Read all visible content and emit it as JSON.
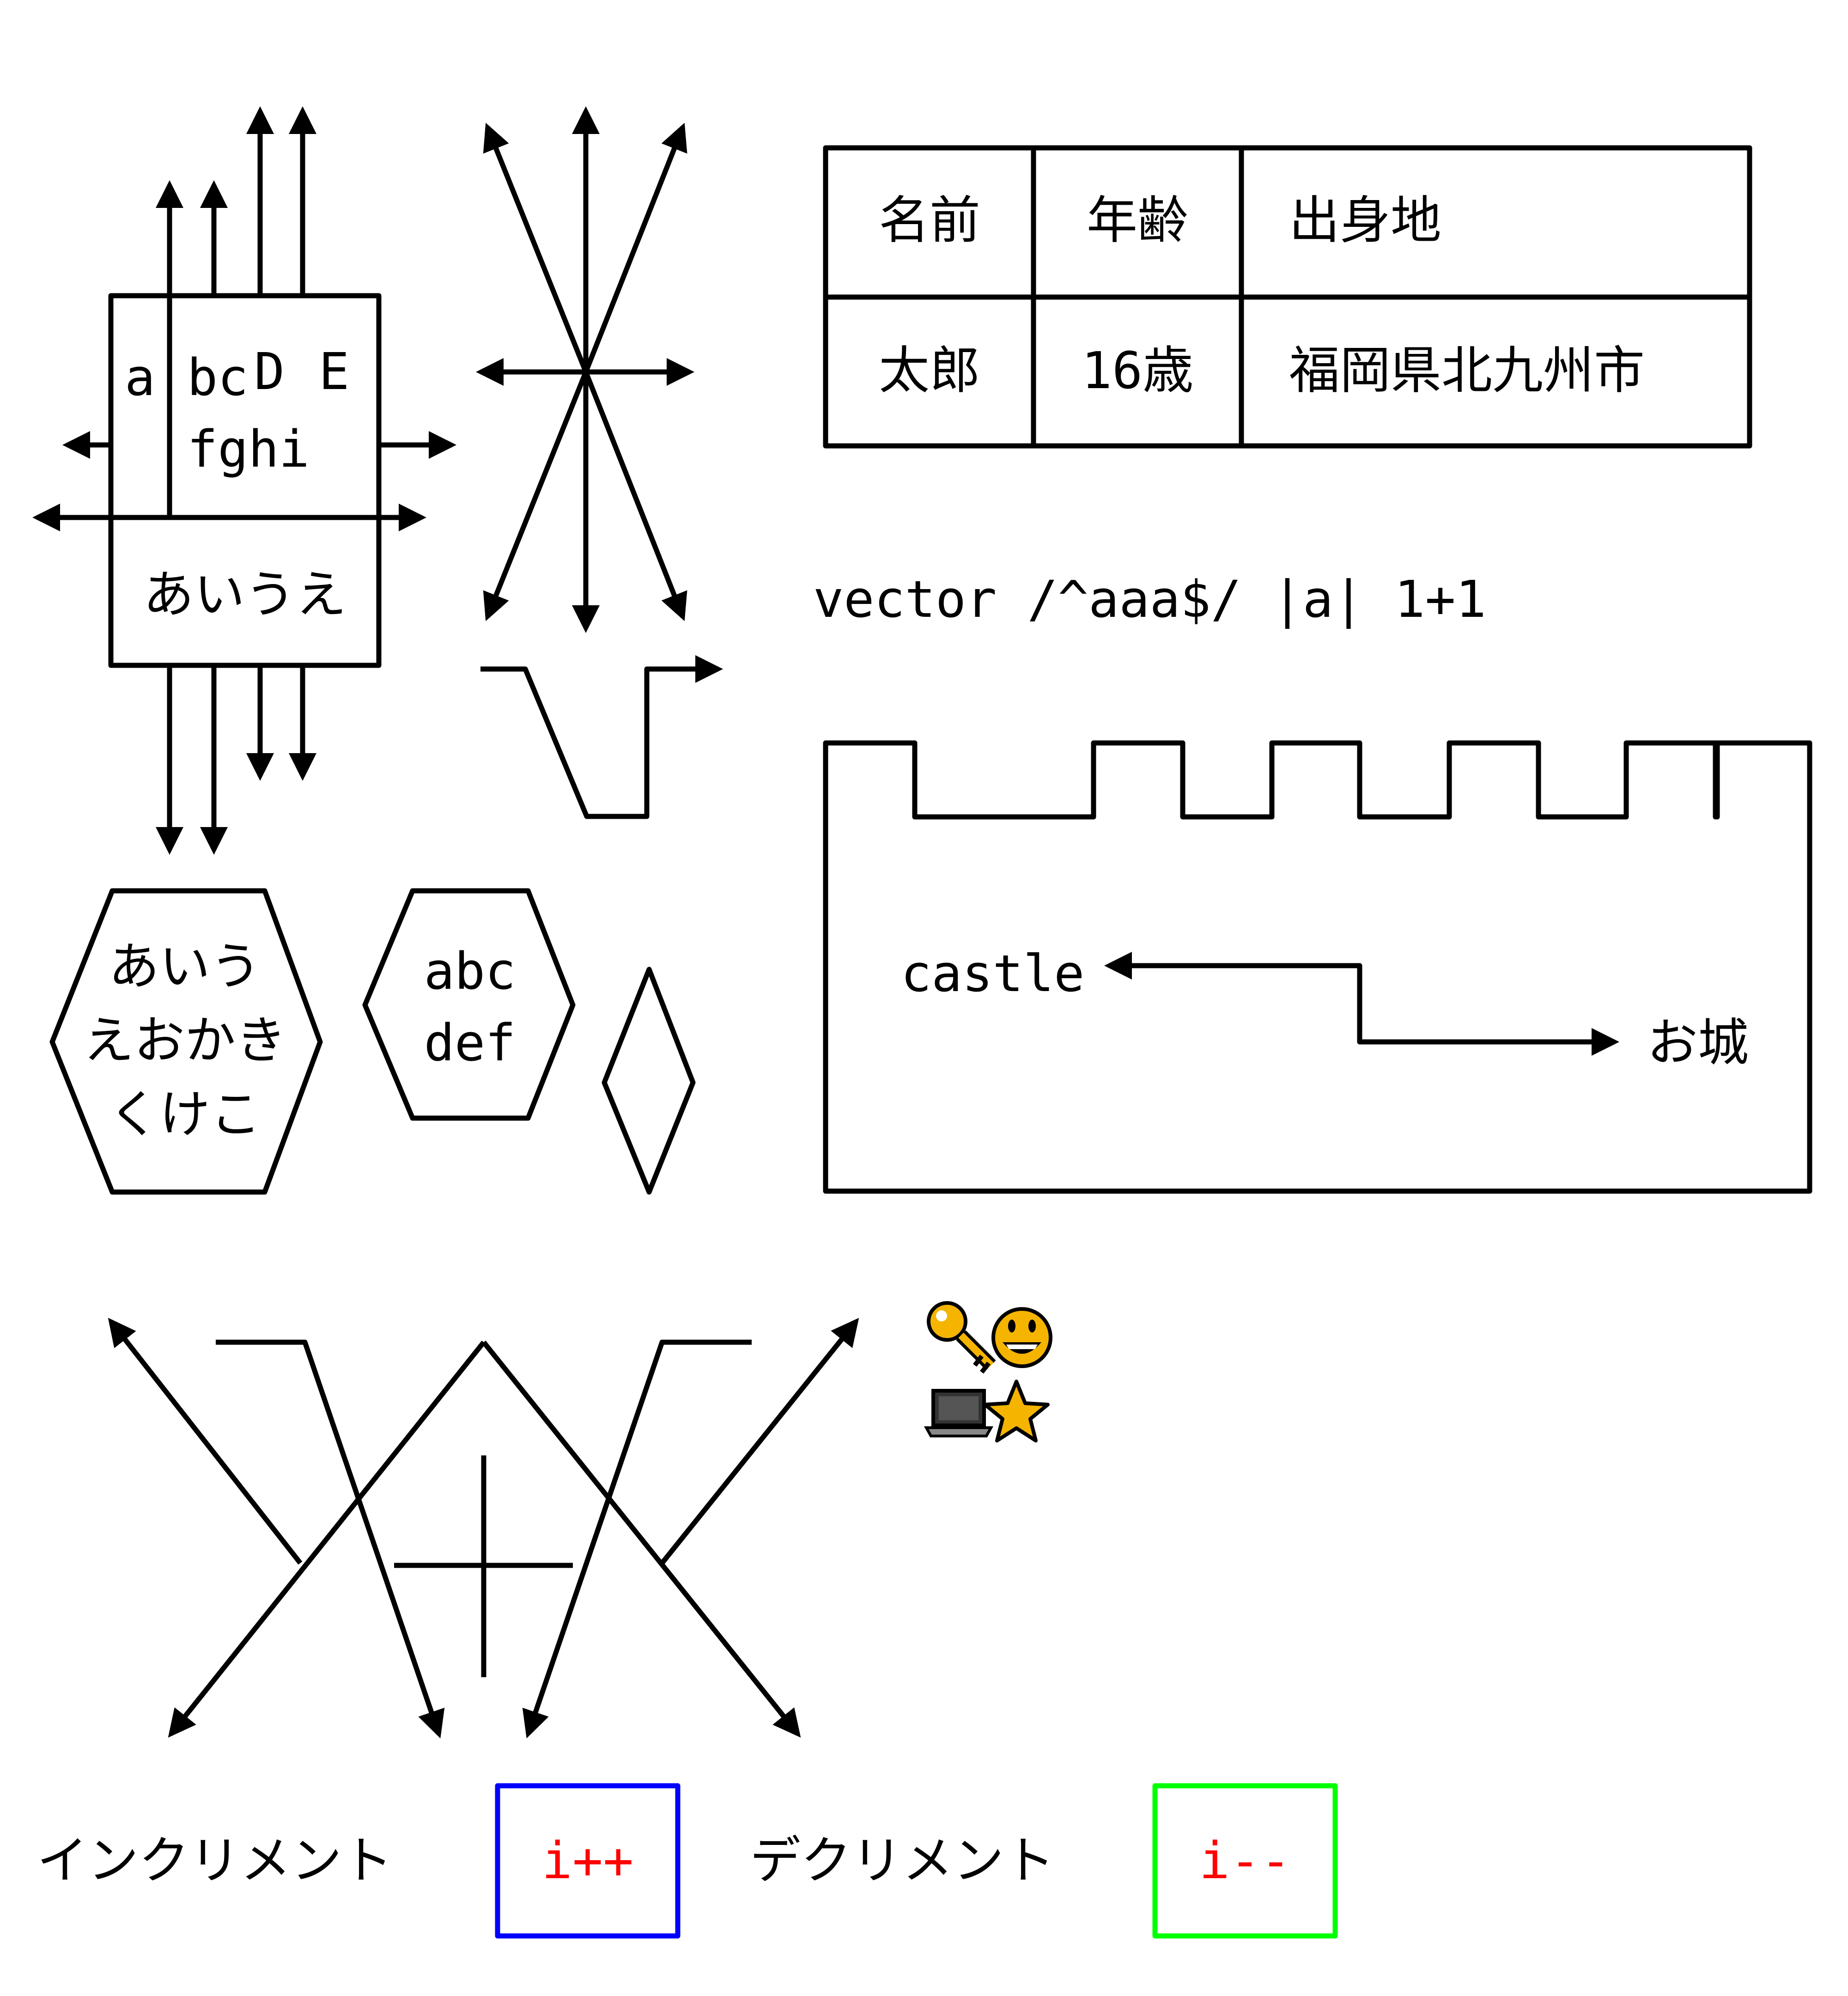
{
  "left_box": {
    "cell_a": "a",
    "cell_bc": "bc",
    "cell_D": "D",
    "cell_E": "E",
    "cell_fghi": "fghi",
    "bottom_text": "あいうえ"
  },
  "table": {
    "headers": [
      "名前",
      "年齢",
      "出身地"
    ],
    "row": [
      "太郎",
      "16歳",
      "福岡県北九州市"
    ]
  },
  "vector_text": "vector /^aaa$/ |a| 1+1",
  "hexagon_left": {
    "lines": [
      "あいう",
      "えおかき",
      "くけこ"
    ]
  },
  "hexagon_right": {
    "lines": [
      "abc",
      "def"
    ]
  },
  "castle": {
    "left_label": "castle",
    "right_label": "お城"
  },
  "emoji": {
    "key": "🔑",
    "smiley": "😀",
    "laptop": "💻",
    "star": "⭐"
  },
  "bottom": {
    "increment_label": "インクリメント",
    "increment_code": "i++",
    "decrement_label": "デクリメント",
    "decrement_code": "i--"
  },
  "colors": {
    "stroke": "#000000",
    "increment_box": "#0000ff",
    "decrement_box": "#00ff00",
    "code_text": "#ff0000",
    "emoji_gold": "#f4b400"
  }
}
